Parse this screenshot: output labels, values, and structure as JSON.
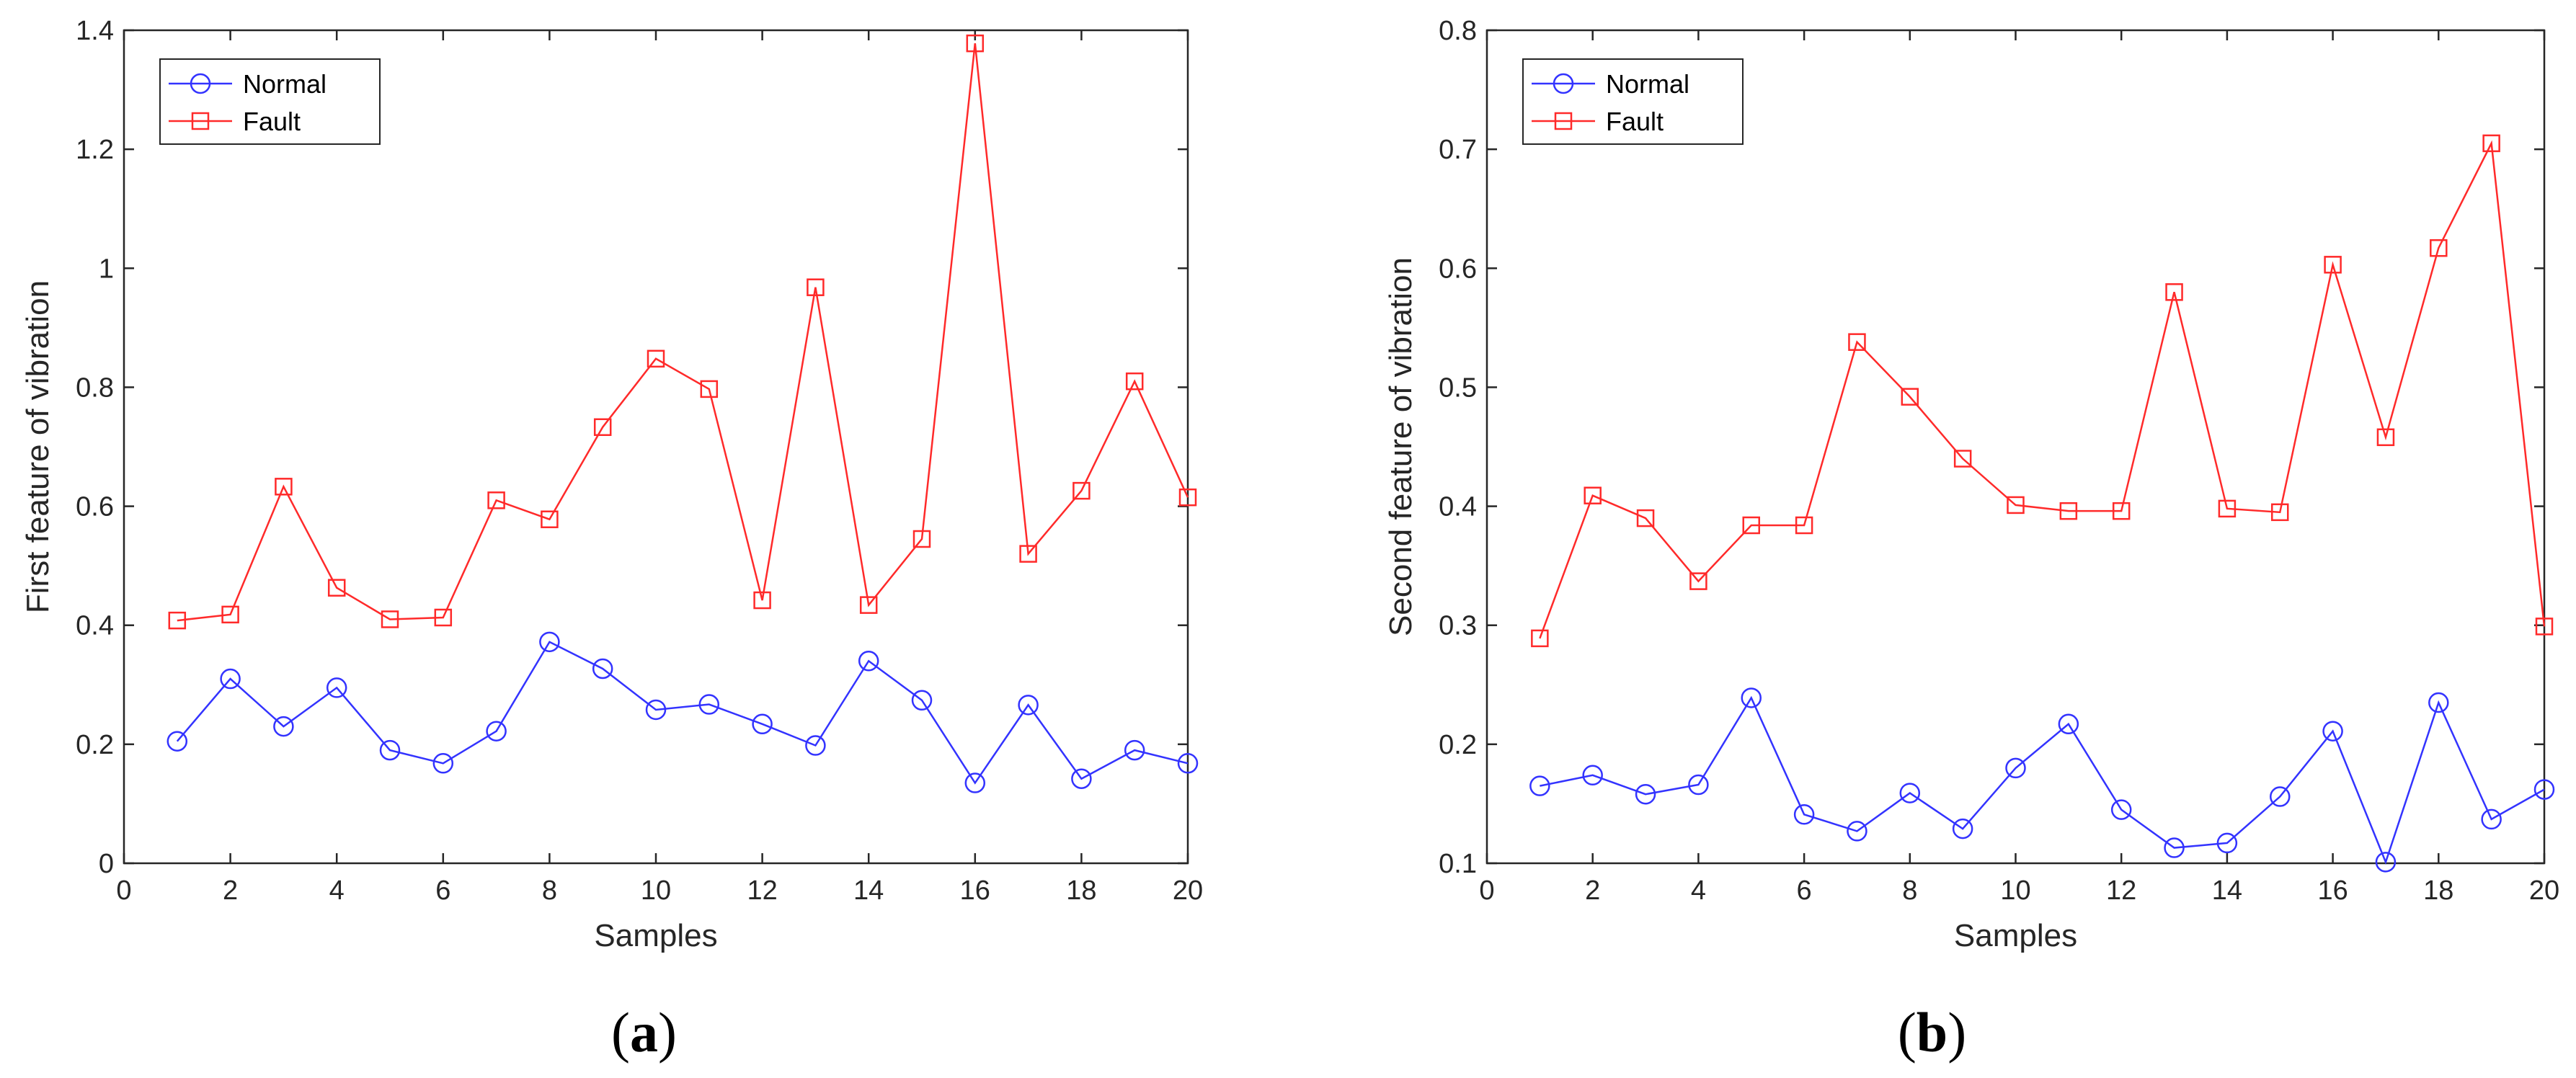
{
  "chart_data": [
    {
      "type": "line",
      "panel_label": "a",
      "title": "",
      "xlabel": "Samples",
      "ylabel": "First feature of vibration",
      "xlim": [
        0,
        20
      ],
      "ylim": [
        0,
        1.4
      ],
      "xticks": [
        0,
        2,
        4,
        6,
        8,
        10,
        12,
        14,
        16,
        18,
        20
      ],
      "xtick_labels": [
        "0",
        "2",
        "4",
        "6",
        "8",
        "10",
        "12",
        "14",
        "16",
        "18",
        "20"
      ],
      "yticks": [
        0,
        0.2,
        0.4,
        0.6,
        0.8,
        1.0,
        1.2,
        1.4
      ],
      "ytick_labels": [
        "0",
        "0.2",
        "0.4",
        "0.6",
        "0.8",
        "1",
        "1.2",
        "1.4"
      ],
      "grid": false,
      "legend_position": "top-left",
      "x": [
        1,
        2,
        3,
        4,
        5,
        6,
        7,
        8,
        9,
        10,
        11,
        12,
        13,
        14,
        15,
        16,
        17,
        18,
        19,
        20
      ],
      "series": [
        {
          "name": "Normal",
          "color": "#3333ff",
          "marker": "circle",
          "values": [
            0.205,
            0.31,
            0.23,
            0.295,
            0.19,
            0.168,
            0.222,
            0.372,
            0.327,
            0.258,
            0.267,
            0.234,
            0.198,
            0.34,
            0.274,
            0.135,
            0.266,
            0.142,
            0.19,
            0.168
          ]
        },
        {
          "name": "Fault",
          "color": "#ff2a2a",
          "marker": "square",
          "values": [
            0.408,
            0.418,
            0.633,
            0.463,
            0.41,
            0.413,
            0.61,
            0.578,
            0.733,
            0.848,
            0.797,
            0.442,
            0.968,
            0.434,
            0.545,
            1.378,
            0.52,
            0.626,
            0.81,
            0.615
          ]
        }
      ]
    },
    {
      "type": "line",
      "panel_label": "b",
      "title": "",
      "xlabel": "Samples",
      "ylabel": "Second feature of vibration",
      "xlim": [
        0,
        20
      ],
      "ylim": [
        0.1,
        0.8
      ],
      "xticks": [
        0,
        2,
        4,
        6,
        8,
        10,
        12,
        14,
        16,
        18,
        20
      ],
      "xtick_labels": [
        "0",
        "2",
        "4",
        "6",
        "8",
        "10",
        "12",
        "14",
        "16",
        "18",
        "20"
      ],
      "yticks": [
        0.1,
        0.2,
        0.3,
        0.4,
        0.5,
        0.6,
        0.7,
        0.8
      ],
      "ytick_labels": [
        "0.1",
        "0.2",
        "0.3",
        "0.4",
        "0.5",
        "0.6",
        "0.7",
        "0.8"
      ],
      "grid": false,
      "legend_position": "top-left",
      "x": [
        1,
        2,
        3,
        4,
        5,
        6,
        7,
        8,
        9,
        10,
        11,
        12,
        13,
        14,
        15,
        16,
        17,
        18,
        19,
        20
      ],
      "series": [
        {
          "name": "Normal",
          "color": "#3333ff",
          "marker": "circle",
          "values": [
            0.165,
            0.174,
            0.158,
            0.166,
            0.239,
            0.141,
            0.127,
            0.159,
            0.129,
            0.18,
            0.217,
            0.145,
            0.113,
            0.117,
            0.156,
            0.211,
            0.101,
            0.235,
            0.137,
            0.162
          ]
        },
        {
          "name": "Fault",
          "color": "#ff2a2a",
          "marker": "square",
          "values": [
            0.289,
            0.409,
            0.39,
            0.337,
            0.384,
            0.384,
            0.538,
            0.492,
            0.44,
            0.401,
            0.396,
            0.396,
            0.58,
            0.398,
            0.395,
            0.603,
            0.458,
            0.617,
            0.705,
            0.299
          ]
        }
      ]
    }
  ]
}
